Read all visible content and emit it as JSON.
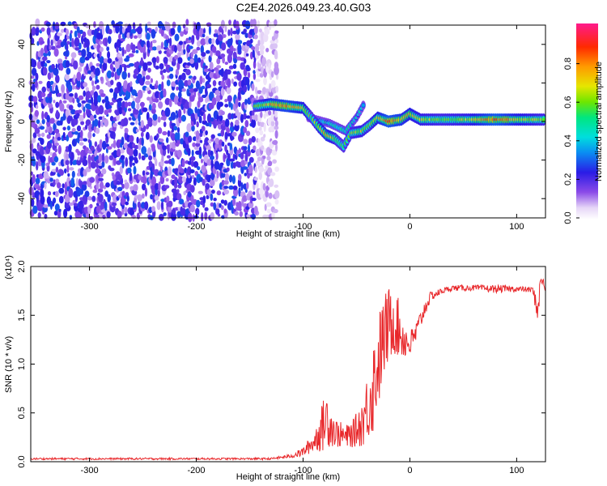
{
  "chart_data": [
    {
      "type": "heatmap",
      "title": "C2E4.2026.049.23.40.G03",
      "xlabel": "Height of straight line (km)",
      "ylabel": "Frequency (Hz)",
      "xlim": [
        -355,
        127
      ],
      "ylim": [
        -50,
        50
      ],
      "xticks": [
        -300,
        -200,
        -100,
        0,
        100
      ],
      "yticks": [
        -40,
        -20,
        0,
        20,
        40
      ],
      "colorbar": {
        "label": "Normalized spectral amplitude",
        "range": [
          0,
          1
        ],
        "ticks": [
          "0.0",
          "0.2",
          "0.4",
          "0.6",
          "0.8"
        ],
        "tick_values": [
          0.0,
          0.2,
          0.4,
          0.6,
          0.8
        ]
      },
      "noise_region": {
        "x_range": [
          -355,
          -125
        ],
        "freq_range": [
          -50,
          50
        ],
        "amplitude": 0.25
      },
      "signal_track": [
        {
          "x": -145,
          "freq": 8,
          "amp": 0.55
        },
        {
          "x": -130,
          "freq": 9,
          "amp": 0.75
        },
        {
          "x": -115,
          "freq": 8,
          "amp": 0.8
        },
        {
          "x": -100,
          "freq": 7,
          "amp": 0.7
        },
        {
          "x": -92,
          "freq": 2,
          "amp": 0.55
        },
        {
          "x": -85,
          "freq": -3,
          "amp": 0.65
        },
        {
          "x": -78,
          "freq": -7,
          "amp": 0.75
        },
        {
          "x": -70,
          "freq": -9,
          "amp": 0.6
        },
        {
          "x": -62,
          "freq": -13,
          "amp": 0.55
        },
        {
          "x": -55,
          "freq": -6,
          "amp": 0.6
        },
        {
          "x": -45,
          "freq": -5,
          "amp": 0.65
        },
        {
          "x": -38,
          "freq": -2,
          "amp": 0.6
        },
        {
          "x": -30,
          "freq": 2,
          "amp": 0.7
        },
        {
          "x": -20,
          "freq": 0,
          "amp": 0.85
        },
        {
          "x": -8,
          "freq": 1,
          "amp": 0.75
        },
        {
          "x": 0,
          "freq": 4,
          "amp": 0.7
        },
        {
          "x": 10,
          "freq": 1,
          "amp": 0.65
        },
        {
          "x": 30,
          "freq": 1,
          "amp": 0.6
        },
        {
          "x": 55,
          "freq": 1,
          "amp": 0.65
        },
        {
          "x": 80,
          "freq": 1,
          "amp": 0.85
        },
        {
          "x": 100,
          "freq": 1,
          "amp": 0.7
        },
        {
          "x": 127,
          "freq": 1,
          "amp": 0.6
        }
      ],
      "secondary_track": [
        {
          "x": -95,
          "freq": 2,
          "amp": 0.4
        },
        {
          "x": -75,
          "freq": -1,
          "amp": 0.45
        },
        {
          "x": -60,
          "freq": -5,
          "amp": 0.5
        },
        {
          "x": -50,
          "freq": 2,
          "amp": 0.45
        },
        {
          "x": -42,
          "freq": 10,
          "amp": 0.4
        }
      ]
    },
    {
      "type": "line",
      "xlabel": "Height of straight line (km)",
      "ylabel": "SNR (10 * v/v)",
      "y_multiplier": "(x10⁴)",
      "xlim": [
        -355,
        127
      ],
      "ylim": [
        0,
        2.0
      ],
      "xticks": [
        -300,
        -200,
        -100,
        0,
        100
      ],
      "yticks": [
        "0.0",
        "0.5",
        "1.0",
        "1.5",
        "2.0"
      ],
      "ytick_values": [
        0,
        0.5,
        1.0,
        1.5,
        2.0
      ],
      "series": [
        {
          "color": "#e8272a",
          "x": [
            -355,
            -300,
            -200,
            -130,
            -110,
            -100,
            -90,
            -82,
            -78,
            -70,
            -60,
            -52,
            -45,
            -40,
            -35,
            -30,
            -25,
            -20,
            -15,
            -10,
            -5,
            0,
            5,
            10,
            15,
            20,
            25,
            30,
            40,
            60,
            80,
            100,
            115,
            120,
            123,
            127
          ],
          "y": [
            0.03,
            0.03,
            0.03,
            0.03,
            0.06,
            0.1,
            0.2,
            0.35,
            0.45,
            0.3,
            0.25,
            0.3,
            0.4,
            0.55,
            0.75,
            1.0,
            1.25,
            1.4,
            1.45,
            1.35,
            1.25,
            1.2,
            1.3,
            1.45,
            1.6,
            1.7,
            1.72,
            1.75,
            1.78,
            1.78,
            1.77,
            1.77,
            1.76,
            1.55,
            1.9,
            1.75
          ],
          "noise": [
            0.01,
            0.01,
            0.01,
            0.01,
            0.02,
            0.05,
            0.1,
            0.25,
            0.3,
            0.15,
            0.12,
            0.15,
            0.25,
            0.35,
            0.5,
            0.5,
            0.45,
            0.4,
            0.35,
            0.3,
            0.2,
            0.15,
            0.12,
            0.1,
            0.08,
            0.05,
            0.04,
            0.03,
            0.03,
            0.03,
            0.04,
            0.03,
            0.03,
            0.15,
            0.08,
            0.03
          ]
        }
      ]
    }
  ]
}
